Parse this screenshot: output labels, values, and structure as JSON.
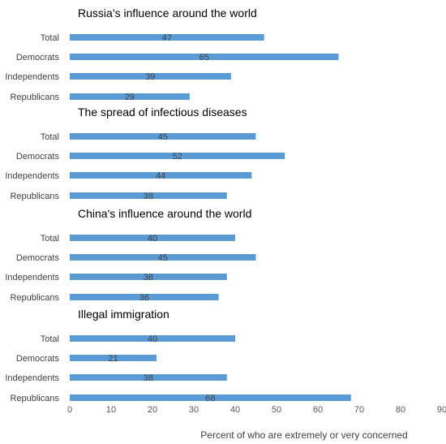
{
  "chart_data": {
    "type": "bar",
    "orientation": "horizontal",
    "xlabel": "Percent of who are extremely or very concerned",
    "xlim": [
      0,
      90
    ],
    "x_ticks": [
      0,
      10,
      20,
      30,
      40,
      50,
      60,
      70,
      80,
      90
    ],
    "grid": false,
    "bar_color": "#5b9bd5",
    "categories": [
      "Total",
      "Democrats",
      "Independents",
      "Republicans"
    ],
    "groups": [
      {
        "title": "Russia’s influence around the world",
        "values": [
          47,
          65,
          39,
          29
        ]
      },
      {
        "title": "The spread of infectious diseases",
        "values": [
          45,
          52,
          44,
          38
        ]
      },
      {
        "title": "China's influence around the world",
        "values": [
          40,
          45,
          38,
          36
        ]
      },
      {
        "title": "Illegal immigration",
        "values": [
          40,
          21,
          38,
          68
        ]
      }
    ]
  }
}
